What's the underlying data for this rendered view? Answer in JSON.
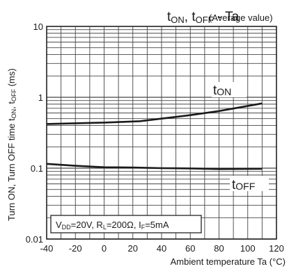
{
  "chart_data": {
    "type": "line",
    "title": {
      "main": "t",
      "sub_on": "ON",
      "sep": ", t",
      "sub_off": "OFF",
      "tail": " - Ta",
      "note": "(Average value)"
    },
    "xlabel": "Ambient temperature Ta (°C)",
    "ylabel": {
      "text": "Turn ON, Turn OFF time t",
      "sub_on": "ON",
      "sep": ", t",
      "sub_off": "OFF",
      "unit": " (ms)"
    },
    "x_ticks": [
      -40,
      -20,
      0,
      20,
      40,
      60,
      80,
      100,
      120
    ],
    "y_ticks": [
      0.01,
      0.1,
      1,
      10
    ],
    "y_tick_labels": [
      "0.01",
      "0.1",
      "1",
      "10"
    ],
    "xlim": [
      -40,
      120
    ],
    "ylim": [
      0.01,
      10
    ],
    "y_scale": "log",
    "grid": true,
    "condition": {
      "v_main": "V",
      "v_sub": "DD",
      "v_val": "=20V, R",
      "r_sub": "L",
      "r_val": "=200Ω, I",
      "i_sub": "F",
      "i_val": "=5mA"
    },
    "series": [
      {
        "name": "tON",
        "label_main": "t",
        "label_sub": "ON",
        "x": [
          -40,
          -20,
          0,
          25,
          40,
          60,
          80,
          110
        ],
        "y": [
          0.42,
          0.43,
          0.44,
          0.46,
          0.5,
          0.56,
          0.64,
          0.82
        ]
      },
      {
        "name": "tOFF",
        "label_main": "t",
        "label_sub": "OFF",
        "x": [
          -40,
          -20,
          0,
          20,
          40,
          60,
          80,
          110
        ],
        "y": [
          0.115,
          0.108,
          0.103,
          0.102,
          0.1,
          0.099,
          0.097,
          0.098
        ]
      }
    ]
  }
}
